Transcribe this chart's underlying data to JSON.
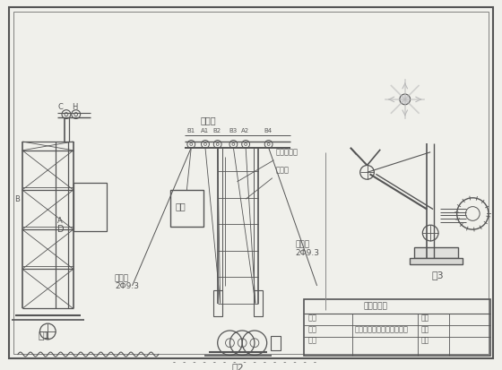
{
  "bg_color": "#f0f0eb",
  "line_color": "#555555",
  "fig_width": 5.6,
  "fig_height": 4.13,
  "dpi": 100,
  "labels": {
    "fig1": "图1",
    "fig2": "图2",
    "fig3": "图3",
    "suofeng": "缆风绳",
    "suofeng2": "2Φ9.3",
    "dinghualun": "顶滑轮",
    "tijian": "提升钢丝绳",
    "duizhongjia": "对重架",
    "diaolong": "吊笼",
    "designer": "设计",
    "drawer": "制图",
    "checker": "审核",
    "biaoti": "物料提升机安装施工示意图",
    "bianhao": "编号",
    "tuihao": "图号",
    "riqi": "日期",
    "company": "观光塔工程"
  }
}
